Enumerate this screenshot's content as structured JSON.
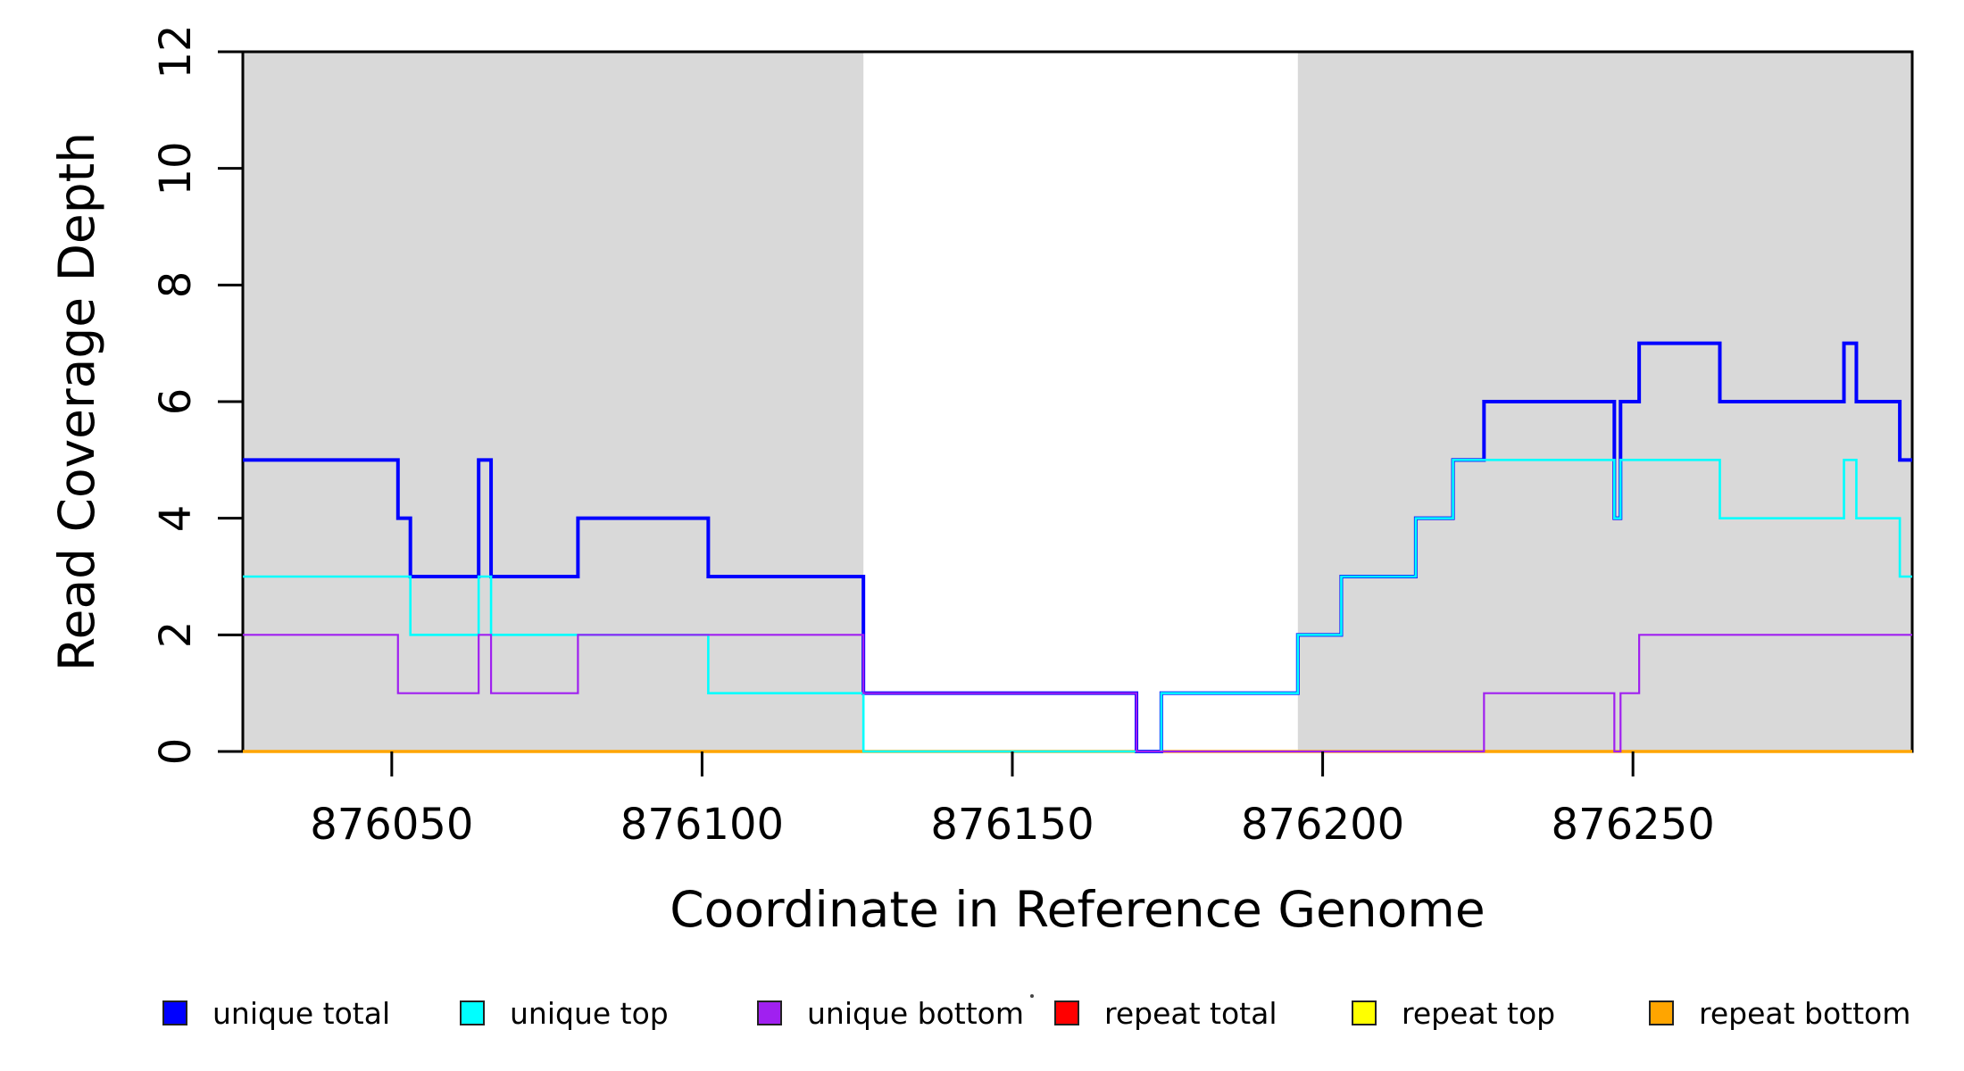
{
  "chart_data": {
    "type": "line",
    "subtype": "step",
    "title": "",
    "xlabel": "Coordinate in Reference Genome",
    "ylabel": "Read Coverage Depth",
    "xlim": [
      876026,
      876295
    ],
    "ylim": [
      0,
      12
    ],
    "x_ticks": [
      876050,
      876100,
      876150,
      876200,
      876250
    ],
    "y_ticks": [
      0,
      2,
      4,
      6,
      8,
      10,
      12
    ],
    "grid": false,
    "legend_position": "bottom",
    "background_color": "#ffffff",
    "shaded_regions": [
      {
        "x0": 876026,
        "x1": 876126,
        "color": "#D9D9D9"
      },
      {
        "x0": 876196,
        "x1": 876295,
        "color": "#D9D9D9"
      }
    ],
    "draw_order": [
      "repeat total",
      "repeat top",
      "repeat bottom",
      "unique total",
      "unique top",
      "unique bottom"
    ],
    "series": [
      {
        "name": "unique total",
        "color": "#0000FF",
        "line_width": 4,
        "steps": [
          [
            876026,
            5
          ],
          [
            876051,
            4
          ],
          [
            876053,
            3
          ],
          [
            876064,
            5
          ],
          [
            876066,
            3
          ],
          [
            876080,
            4
          ],
          [
            876101,
            3
          ],
          [
            876126,
            1
          ],
          [
            876170,
            0
          ],
          [
            876174,
            1
          ],
          [
            876196,
            2
          ],
          [
            876203,
            3
          ],
          [
            876215,
            4
          ],
          [
            876221,
            5
          ],
          [
            876226,
            6
          ],
          [
            876247,
            4
          ],
          [
            876248,
            6
          ],
          [
            876251,
            7
          ],
          [
            876264,
            6
          ],
          [
            876284,
            7
          ],
          [
            876286,
            6
          ],
          [
            876293,
            5
          ]
        ]
      },
      {
        "name": "unique top",
        "color": "#00FFFF",
        "line_width": 2.6,
        "steps": [
          [
            876026,
            3
          ],
          [
            876053,
            2
          ],
          [
            876064,
            3
          ],
          [
            876066,
            2
          ],
          [
            876101,
            1
          ],
          [
            876126,
            0
          ],
          [
            876174,
            1
          ],
          [
            876196,
            2
          ],
          [
            876203,
            3
          ],
          [
            876215,
            4
          ],
          [
            876221,
            5
          ],
          [
            876247,
            4
          ],
          [
            876248,
            5
          ],
          [
            876264,
            4
          ],
          [
            876284,
            5
          ],
          [
            876286,
            4
          ],
          [
            876293,
            3
          ]
        ]
      },
      {
        "name": "unique bottom",
        "color": "#A020F0",
        "line_width": 2.2,
        "steps": [
          [
            876026,
            2
          ],
          [
            876051,
            1
          ],
          [
            876064,
            2
          ],
          [
            876066,
            1
          ],
          [
            876080,
            2
          ],
          [
            876126,
            1
          ],
          [
            876170,
            0
          ],
          [
            876226,
            1
          ],
          [
            876247,
            0
          ],
          [
            876248,
            1
          ],
          [
            876251,
            2
          ]
        ]
      },
      {
        "name": "repeat total",
        "color": "#FF0000",
        "line_width": 2.4,
        "steps": [
          [
            876026,
            0
          ]
        ]
      },
      {
        "name": "repeat top",
        "color": "#FFFF00",
        "line_width": 2.4,
        "steps": [
          [
            876026,
            0
          ]
        ]
      },
      {
        "name": "repeat bottom",
        "color": "#FFA500",
        "line_width": 3.4,
        "steps": [
          [
            876026,
            0
          ]
        ]
      }
    ]
  },
  "axes": {
    "x_title": "Coordinate in Reference Genome",
    "y_title": "Read Coverage Depth"
  },
  "legend": {
    "items": [
      {
        "label": "unique total",
        "color": "#0000FF"
      },
      {
        "label": "unique top",
        "color": "#00FFFF"
      },
      {
        "label": "unique bottom",
        "color": "#A020F0"
      },
      {
        "label": "repeat total",
        "color": "#FF0000"
      },
      {
        "label": "repeat top",
        "color": "#FFFF00"
      },
      {
        "label": "repeat bottom",
        "color": "#FFA500"
      }
    ]
  }
}
